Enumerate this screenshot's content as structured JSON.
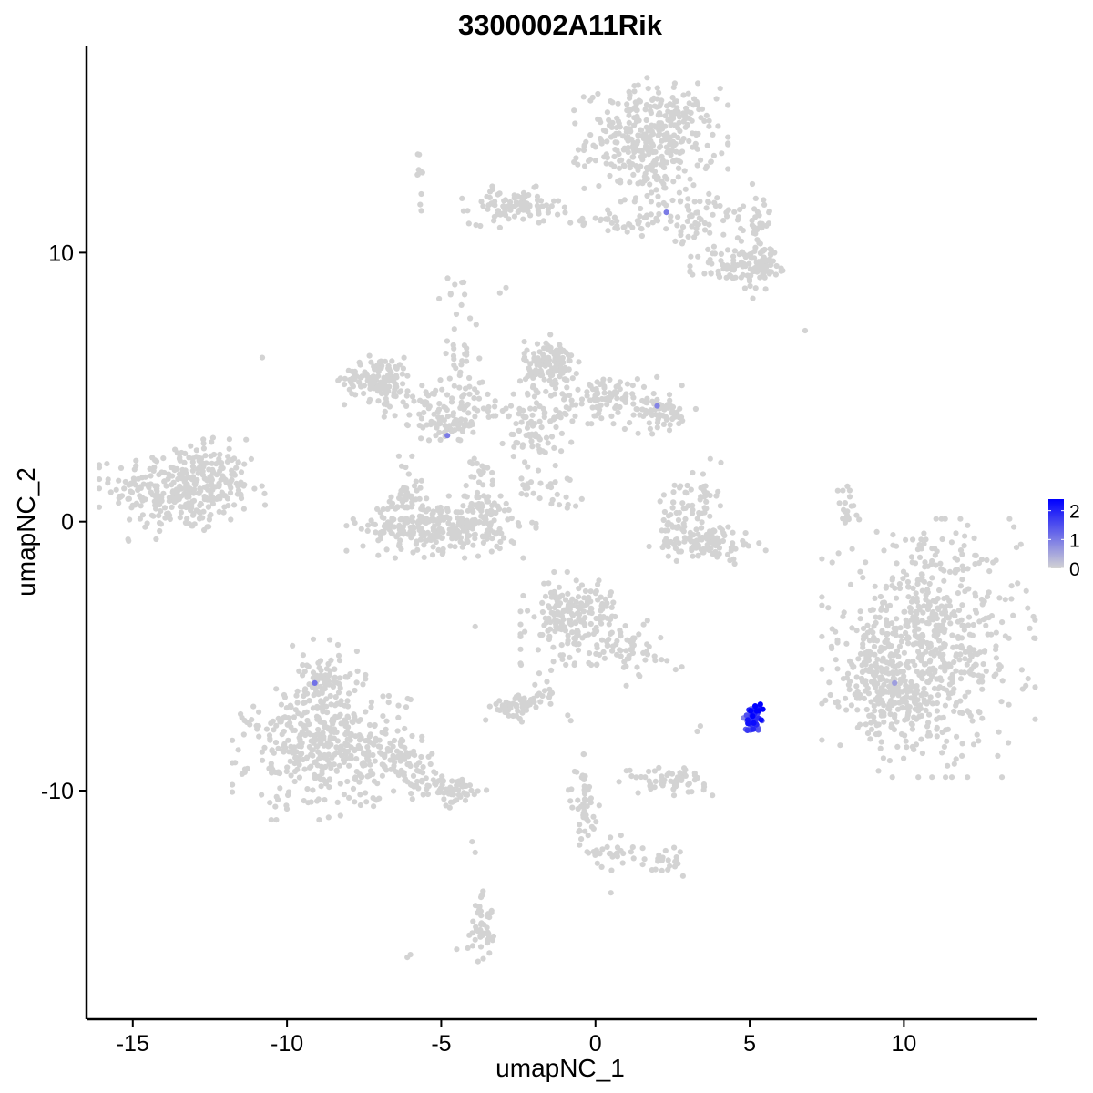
{
  "chart_data": {
    "type": "scatter",
    "title": "3300002A11Rik",
    "xlabel": "umapNC_1",
    "ylabel": "umapNC_2",
    "xlim": [
      -16.5,
      14.3
    ],
    "ylim": [
      -18.5,
      17.7
    ],
    "x_ticks": [
      -15,
      -10,
      -5,
      0,
      5,
      10
    ],
    "y_ticks": [
      -10,
      0,
      10
    ],
    "x_tick_labels": [
      "-15",
      "-10",
      "-5",
      "0",
      "5",
      "10"
    ],
    "y_tick_labels": [
      "-10",
      "0",
      "10"
    ],
    "grid": false,
    "legend_position": "right",
    "colors": {
      "low": "#d3d3d3",
      "high": "#0000ff",
      "axis": "#000000"
    },
    "color_scale": {
      "min": 0,
      "max": 2.4,
      "ticks": [
        0,
        1,
        2
      ],
      "tick_labels": [
        "0",
        "1",
        "2"
      ]
    },
    "clusters": [
      {
        "cx": -13.4,
        "cy": 1.2,
        "rx": 1.4,
        "ry": 1.0,
        "n": 320,
        "expr": 0
      },
      {
        "cx": -12.1,
        "cy": 1.8,
        "rx": 0.5,
        "ry": 0.8,
        "n": 40,
        "expr": 0
      },
      {
        "cx": 1.8,
        "cy": 14.2,
        "rx": 1.3,
        "ry": 1.2,
        "n": 380,
        "expr": 0
      },
      {
        "cx": -2.6,
        "cy": 11.7,
        "rx": 0.9,
        "ry": 0.4,
        "n": 90,
        "expr": 0
      },
      {
        "cx": 0.4,
        "cy": 11.2,
        "rx": 1.5,
        "ry": 0.3,
        "n": 40,
        "expr": 0
      },
      {
        "cx": 3.5,
        "cy": 11.4,
        "rx": 1.2,
        "ry": 0.6,
        "n": 60,
        "expr": 0
      },
      {
        "cx": 5.2,
        "cy": 11.3,
        "rx": 0.4,
        "ry": 0.6,
        "n": 25,
        "expr": 0
      },
      {
        "cx": 4.6,
        "cy": 9.4,
        "rx": 0.8,
        "ry": 0.5,
        "n": 80,
        "expr": 0
      },
      {
        "cx": 5.5,
        "cy": 9.7,
        "rx": 0.4,
        "ry": 0.4,
        "n": 50,
        "expr": 0
      },
      {
        "cx": -7.0,
        "cy": 5.3,
        "rx": 0.7,
        "ry": 0.5,
        "n": 120,
        "expr": 0
      },
      {
        "cx": -5.5,
        "cy": 4.4,
        "rx": 0.9,
        "ry": 0.5,
        "n": 50,
        "expr": 0
      },
      {
        "cx": -4.7,
        "cy": 3.6,
        "rx": 0.5,
        "ry": 0.3,
        "n": 50,
        "expr": 0
      },
      {
        "cx": -3.9,
        "cy": 4.2,
        "rx": 0.8,
        "ry": 0.5,
        "n": 40,
        "expr": 0
      },
      {
        "cx": -4.4,
        "cy": 6.2,
        "rx": 0.4,
        "ry": 1.0,
        "n": 30,
        "expr": 0
      },
      {
        "cx": -5.0,
        "cy": -0.2,
        "rx": 1.6,
        "ry": 0.6,
        "n": 300,
        "expr": 0
      },
      {
        "cx": -6.1,
        "cy": 0.9,
        "rx": 0.3,
        "ry": 0.8,
        "n": 50,
        "expr": 0
      },
      {
        "cx": -3.7,
        "cy": 1.1,
        "rx": 0.3,
        "ry": 0.9,
        "n": 50,
        "expr": 0
      },
      {
        "cx": -1.5,
        "cy": 5.8,
        "rx": 0.5,
        "ry": 0.6,
        "n": 130,
        "expr": 0
      },
      {
        "cx": -1.9,
        "cy": 3.5,
        "rx": 0.6,
        "ry": 0.9,
        "n": 80,
        "expr": 0
      },
      {
        "cx": 0.5,
        "cy": 4.6,
        "rx": 1.2,
        "ry": 0.5,
        "n": 100,
        "expr": 0
      },
      {
        "cx": 2.1,
        "cy": 4.0,
        "rx": 0.6,
        "ry": 0.4,
        "n": 60,
        "expr": 0
      },
      {
        "cx": -1.5,
        "cy": 1.2,
        "rx": 0.7,
        "ry": 0.4,
        "n": 25,
        "expr": 0
      },
      {
        "cx": 3.6,
        "cy": -0.8,
        "rx": 1.0,
        "ry": 0.4,
        "n": 110,
        "expr": 0
      },
      {
        "cx": 3.3,
        "cy": 0.8,
        "rx": 0.4,
        "ry": 0.8,
        "n": 50,
        "expr": 0
      },
      {
        "cx": 2.4,
        "cy": 0.2,
        "rx": 0.3,
        "ry": 0.6,
        "n": 20,
        "expr": 0
      },
      {
        "cx": 8.1,
        "cy": 0.3,
        "rx": 0.2,
        "ry": 0.7,
        "n": 20,
        "expr": 0
      },
      {
        "cx": 10.8,
        "cy": -4.7,
        "rx": 1.8,
        "ry": 2.5,
        "n": 650,
        "expr": 0
      },
      {
        "cx": 9.0,
        "cy": -5.6,
        "rx": 0.6,
        "ry": 1.2,
        "n": 120,
        "expr": 0
      },
      {
        "cx": 9.7,
        "cy": -6.8,
        "rx": 1.0,
        "ry": 0.6,
        "n": 80,
        "expr": 0
      },
      {
        "cx": -0.7,
        "cy": -3.6,
        "rx": 0.9,
        "ry": 0.9,
        "n": 200,
        "expr": 0
      },
      {
        "cx": 1.0,
        "cy": -4.6,
        "rx": 0.8,
        "ry": 0.6,
        "n": 50,
        "expr": 0
      },
      {
        "cx": -8.7,
        "cy": -8.4,
        "rx": 1.6,
        "ry": 1.4,
        "n": 420,
        "expr": 0
      },
      {
        "cx": -8.8,
        "cy": -6.1,
        "rx": 0.7,
        "ry": 0.9,
        "n": 90,
        "expr": 0
      },
      {
        "cx": -6.5,
        "cy": -8.8,
        "rx": 0.9,
        "ry": 0.5,
        "n": 60,
        "expr": 0
      },
      {
        "cx": -5.2,
        "cy": -9.8,
        "rx": 0.7,
        "ry": 0.4,
        "n": 50,
        "expr": 0
      },
      {
        "cx": -4.3,
        "cy": -10.1,
        "rx": 0.4,
        "ry": 0.3,
        "n": 30,
        "expr": 0
      },
      {
        "cx": -2.6,
        "cy": -6.9,
        "rx": 0.5,
        "ry": 0.3,
        "n": 50,
        "expr": 0
      },
      {
        "cx": -1.6,
        "cy": -6.2,
        "rx": 0.3,
        "ry": 0.5,
        "n": 15,
        "expr": 0
      },
      {
        "cx": 2.3,
        "cy": -9.6,
        "rx": 0.8,
        "ry": 0.3,
        "n": 60,
        "expr": 0
      },
      {
        "cx": -0.3,
        "cy": -11.0,
        "rx": 0.3,
        "ry": 0.8,
        "n": 35,
        "expr": 0
      },
      {
        "cx": -0.5,
        "cy": -9.8,
        "rx": 0.2,
        "ry": 0.6,
        "n": 15,
        "expr": 0
      },
      {
        "cx": 0.6,
        "cy": -12.2,
        "rx": 0.5,
        "ry": 0.4,
        "n": 25,
        "expr": 0
      },
      {
        "cx": 2.2,
        "cy": -12.6,
        "rx": 0.5,
        "ry": 0.3,
        "n": 25,
        "expr": 0
      },
      {
        "cx": -3.6,
        "cy": -15.2,
        "rx": 0.3,
        "ry": 0.6,
        "n": 40,
        "expr": 0
      },
      {
        "cx": -3.7,
        "cy": -14.1,
        "rx": 0.1,
        "ry": 0.5,
        "n": 10,
        "expr": 0
      },
      {
        "cx": -5.7,
        "cy": 12.9,
        "rx": 0.1,
        "ry": 0.7,
        "n": 10,
        "expr": 0
      },
      {
        "cx": -4.6,
        "cy": 8.7,
        "rx": 0.3,
        "ry": 0.3,
        "n": 8,
        "expr": 0
      },
      {
        "cx": 2.0,
        "cy": 12.8,
        "rx": 0.3,
        "ry": 0.5,
        "n": 10,
        "expr": 0
      },
      {
        "cx": 2.9,
        "cy": 10.4,
        "rx": 0.5,
        "ry": 0.4,
        "n": 10,
        "expr": 0
      },
      {
        "cx": 5.1,
        "cy": -7.3,
        "rx": 0.16,
        "ry": 0.22,
        "n": 45,
        "expr": 1.6
      },
      {
        "cx": 5.2,
        "cy": -7.0,
        "rx": 0.12,
        "ry": 0.12,
        "n": 15,
        "expr": 2.3
      },
      {
        "cx": 5.1,
        "cy": -7.6,
        "rx": 0.14,
        "ry": 0.14,
        "n": 20,
        "expr": 1.2
      }
    ],
    "points": [
      [
        -10.8,
        6.1,
        0
      ],
      [
        6.8,
        7.1,
        0
      ],
      [
        5.1,
        8.3,
        0
      ],
      [
        -4.5,
        -15.9,
        0
      ],
      [
        -6.1,
        -16.2,
        0
      ],
      [
        -6.0,
        -16.1,
        0
      ],
      [
        0.5,
        -13.8,
        0
      ],
      [
        -3.9,
        -12.3,
        0
      ],
      [
        -4.0,
        -11.9,
        0
      ],
      [
        3.4,
        -7.6,
        0
      ],
      [
        3.3,
        -7.8,
        0
      ],
      [
        2.8,
        -5.4,
        0
      ],
      [
        2.6,
        -5.5,
        0
      ],
      [
        1.4,
        -5.7,
        0
      ],
      [
        1.0,
        -6.1,
        0
      ],
      [
        -0.9,
        -7.2,
        0
      ],
      [
        -0.8,
        -7.4,
        0
      ],
      [
        -3.9,
        -3.9,
        0
      ],
      [
        -2.9,
        8.7,
        0
      ],
      [
        -3.1,
        8.5,
        0
      ],
      [
        -3.7,
        11.9,
        0
      ],
      [
        -3.5,
        2.0,
        0
      ],
      [
        -1.8,
        2.6,
        0
      ],
      [
        -2.4,
        1.6,
        0
      ],
      [
        -2.2,
        1.4,
        0
      ],
      [
        -1.4,
        5.1,
        0
      ],
      [
        2.4,
        3.4,
        0
      ],
      [
        4.3,
        -0.2,
        0
      ],
      [
        3.0,
        12.0,
        0
      ],
      [
        2.3,
        11.5,
        1.0
      ],
      [
        2.0,
        4.3,
        0.9
      ],
      [
        -4.8,
        3.2,
        1.0
      ],
      [
        -9.1,
        -6.0,
        1.1
      ],
      [
        9.7,
        -6.0,
        0.6
      ],
      [
        4.8,
        -7.3,
        0.9
      ],
      [
        5.4,
        -7.4,
        1.4
      ],
      [
        4.9,
        -7.2,
        1.5
      ]
    ]
  }
}
